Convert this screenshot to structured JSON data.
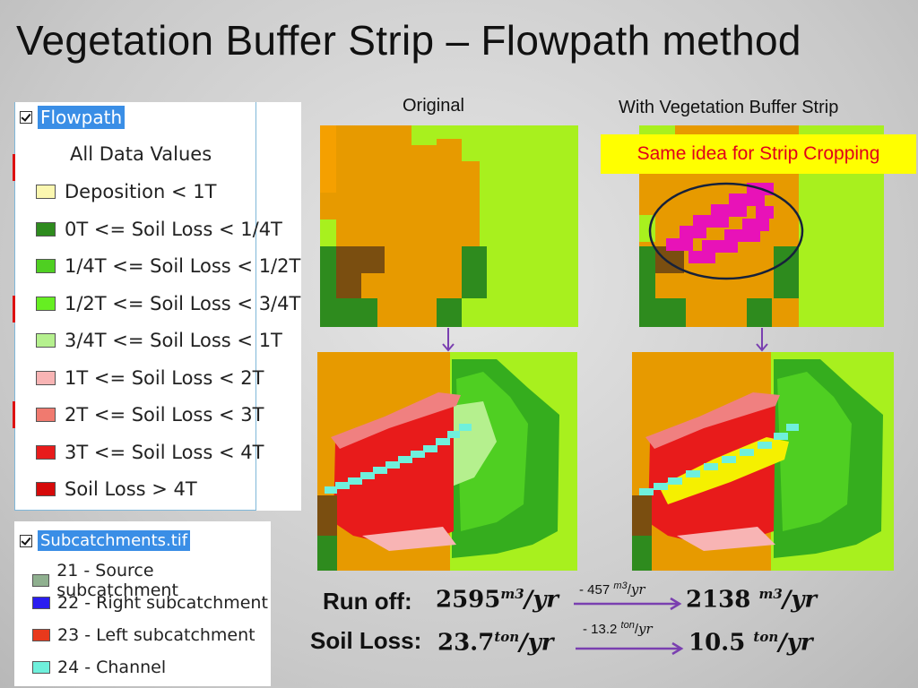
{
  "title": "Vegetation Buffer Strip – Flowpath method",
  "legend_flowpath": {
    "layer": "Flowpath",
    "checked": true,
    "subtitle": "All Data Values",
    "items": [
      {
        "label": "Deposition < 1T",
        "color": "#fbf7b0"
      },
      {
        "label": "0T <= Soil Loss < 1/4T",
        "color": "#2e8b1e"
      },
      {
        "label": "1/4T <= Soil Loss < 1/2T",
        "color": "#4fcf22"
      },
      {
        "label": "1/2T <= Soil Loss < 3/4T",
        "color": "#66ee22"
      },
      {
        "label": "3/4T <= Soil Loss < 1T",
        "color": "#b5f08e"
      },
      {
        "label": "1T <= Soil Loss < 2T",
        "color": "#f8b4b4"
      },
      {
        "label": "2T <= Soil Loss < 3T",
        "color": "#f07a6f"
      },
      {
        "label": "3T <= Soil Loss < 4T",
        "color": "#e81b1b"
      },
      {
        "label": "Soil Loss > 4T",
        "color": "#d60a0a"
      }
    ]
  },
  "legend_sub": {
    "layer": "Subcatchments.tif",
    "checked": true,
    "items": [
      {
        "label": "21 - Source subcatchment",
        "color": "#8fb08f"
      },
      {
        "label": "22 - Right subcatchment",
        "color": "#2a1df0"
      },
      {
        "label": "23 - Left subcatchment",
        "color": "#e8391c"
      },
      {
        "label": "24 - Channel",
        "color": "#6ff0dc"
      }
    ]
  },
  "labels": {
    "original": "Original",
    "with_strip": "With Vegetation Buffer Strip",
    "note": "Same idea for Strip Cropping"
  },
  "stats": {
    "runoff_label": "Run off:",
    "runoff_before": "2595",
    "runoff_delta": "- 457",
    "runoff_after": "2138",
    "runoff_unit_num": "m",
    "runoff_unit_exp": "3",
    "runoff_unit_den": "yr",
    "soil_label": "Soil Loss:",
    "soil_before": "23.7",
    "soil_delta": "- 13.2",
    "soil_after": "10.5",
    "soil_unit_num": "ton",
    "soil_unit_den": "yr"
  }
}
